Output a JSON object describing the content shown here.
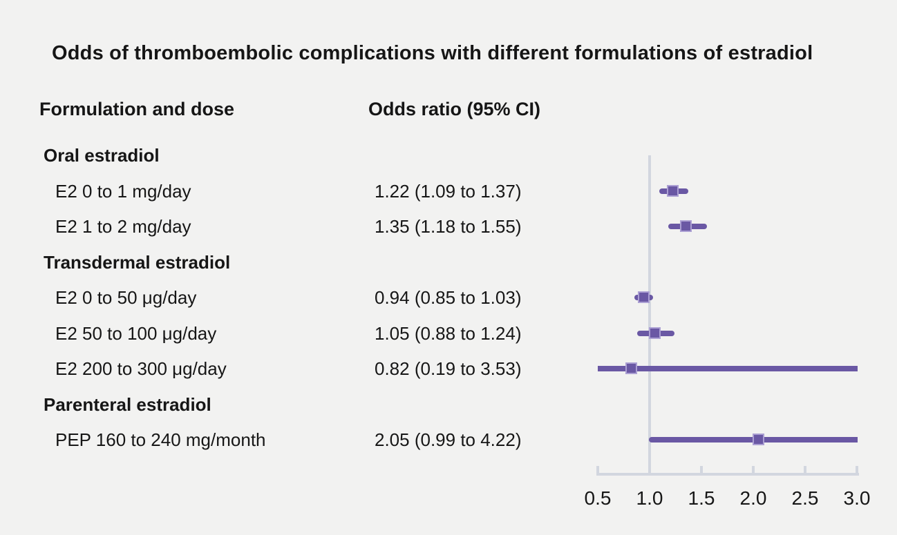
{
  "chart_data": {
    "type": "forest",
    "title": "Odds of thromboembolic complications with different formulations of estradiol",
    "column_headers": {
      "formulation": "Formulation and dose",
      "odds_ratio": "Odds ratio (95% CI)"
    },
    "rows": [
      {
        "type": "group",
        "label": "Oral estradiol"
      },
      {
        "type": "item",
        "label": "E2 0 to 1 mg/day",
        "or_text": "1.22 (1.09 to 1.37)",
        "est": 1.22,
        "lo": 1.09,
        "hi": 1.37
      },
      {
        "type": "item",
        "label": "E2 1 to 2 mg/day",
        "or_text": "1.35 (1.18 to 1.55)",
        "est": 1.35,
        "lo": 1.18,
        "hi": 1.55
      },
      {
        "type": "group",
        "label": "Transdermal estradiol"
      },
      {
        "type": "item",
        "label": "E2 0 to 50 μg/day",
        "or_text": "0.94 (0.85 to 1.03)",
        "est": 0.94,
        "lo": 0.85,
        "hi": 1.03
      },
      {
        "type": "item",
        "label": "E2 50 to 100 μg/day",
        "or_text": "1.05 (0.88 to 1.24)",
        "est": 1.05,
        "lo": 0.88,
        "hi": 1.24
      },
      {
        "type": "item",
        "label": "E2 200 to 300 μg/day",
        "or_text": "0.82 (0.19 to 3.53)",
        "est": 0.82,
        "lo": 0.19,
        "hi": 3.53
      },
      {
        "type": "group",
        "label": "Parenteral estradiol"
      },
      {
        "type": "item",
        "label": "PEP 160 to 240 mg/month",
        "or_text": "2.05 (0.99 to 4.22)",
        "est": 2.05,
        "lo": 0.99,
        "hi": 4.22
      }
    ],
    "axis": {
      "min": 0.5,
      "max": 3.0,
      "tick_values": [
        0.5,
        1.0,
        1.5,
        2.0,
        2.5,
        3.0
      ],
      "tick_labels": [
        "0.5",
        "1.0",
        "1.5",
        "2.0",
        "2.5",
        "3.0"
      ],
      "reference_value": 1.0
    },
    "legend": "none",
    "grid": "off",
    "colors": {
      "marker": "#6a58a4",
      "marker_edge": "#ab9fd3",
      "axis_line": "#d2d6df",
      "background": "#f2f2f1",
      "text": "#161616"
    }
  }
}
